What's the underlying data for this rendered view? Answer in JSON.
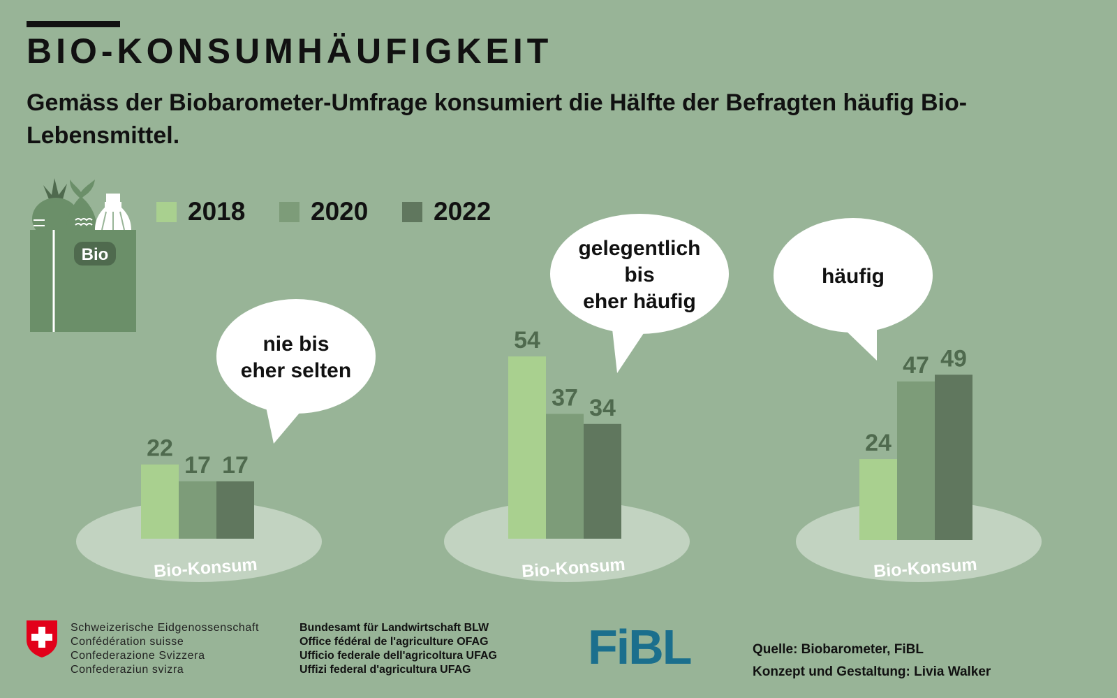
{
  "header": {
    "title": "BIO-KONSUMHÄUFIGKEIT",
    "subtitle": "Gemäss der Biobarometer-Umfrage konsumiert die Hälfte der Befragten häufig Bio-Lebensmittel."
  },
  "bag": {
    "label": "Bio",
    "icon": "bio-shopping-bag-icon"
  },
  "chart_data": {
    "type": "bar",
    "title": "BIO-KONSUMHÄUFIGKEIT",
    "categories": [
      "nie bis eher selten",
      "gelegentlich bis eher häufig",
      "häufig"
    ],
    "category_lines": [
      [
        "nie bis",
        "eher selten"
      ],
      [
        "gelegentlich",
        "bis",
        "eher häufig"
      ],
      [
        "häufig"
      ]
    ],
    "base_label": "Bio-Konsum",
    "series": [
      {
        "name": "2018",
        "color": "#a9d08f",
        "values": [
          22,
          54,
          24
        ]
      },
      {
        "name": "2020",
        "color": "#7d9c79",
        "values": [
          17,
          37,
          47
        ]
      },
      {
        "name": "2022",
        "color": "#60775e",
        "values": [
          17,
          34,
          49
        ]
      }
    ],
    "unit": "%",
    "legend": "top-left",
    "grid": false
  },
  "colors": {
    "background": "#98b497",
    "value_label": "#4f6a4e",
    "platform": "#c2d3c1",
    "bubble": "#ffffff",
    "bag": "#6b8f69",
    "fibl_blue": "#1b6f8d",
    "swiss_red": "#e2001a"
  },
  "footer": {
    "federation": [
      "Schweizerische Eidgenossenschaft",
      "Confédération suisse",
      "Confederazione Svizzera",
      "Confederaziun svizra"
    ],
    "office": [
      "Bundesamt für Landwirtschaft BLW",
      "Office fédéral de l'agriculture OFAG",
      "Ufficio federale dell'agricoltura UFAG",
      "Uffizi federal d'agricultura UFAG"
    ],
    "fibl_logo": "FiBL",
    "source": "Quelle:  Biobarometer, FiBL",
    "credits": "Konzept und Gestaltung:  Livia Walker"
  }
}
